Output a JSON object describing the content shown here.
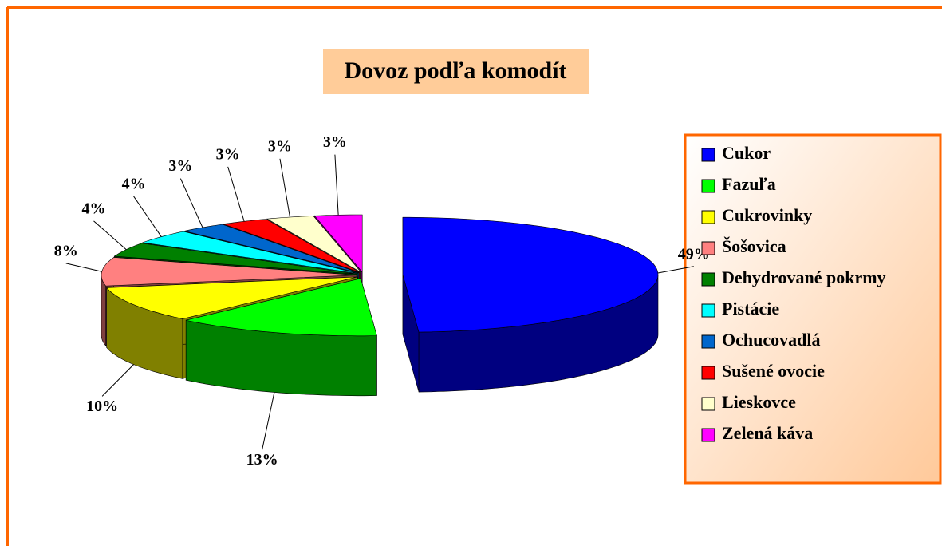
{
  "chart_data": {
    "type": "pie3d",
    "title": "Dovoz podľa komodít",
    "categories": [
      "Cukor",
      "Fazuľa",
      "Cukrovinky",
      "Šošovica",
      "Dehydrované pokrmy",
      "Pistácie",
      "Ochucovadlá",
      "Sušené ovocie",
      "Lieskovce",
      "Zelená káva"
    ],
    "values": [
      49,
      13,
      10,
      8,
      4,
      4,
      3,
      3,
      3,
      3
    ],
    "value_labels": [
      "49%",
      "13%",
      "10%",
      "8%",
      "4%",
      "4%",
      "3%",
      "3%",
      "3%",
      "3%"
    ],
    "colors": [
      "#0000ff",
      "#00ff00",
      "#ffff00",
      "#ff8080",
      "#008000",
      "#00ffff",
      "#0066cc",
      "#ff0000",
      "#ffffcc",
      "#ff00ff"
    ],
    "legend": "right"
  }
}
